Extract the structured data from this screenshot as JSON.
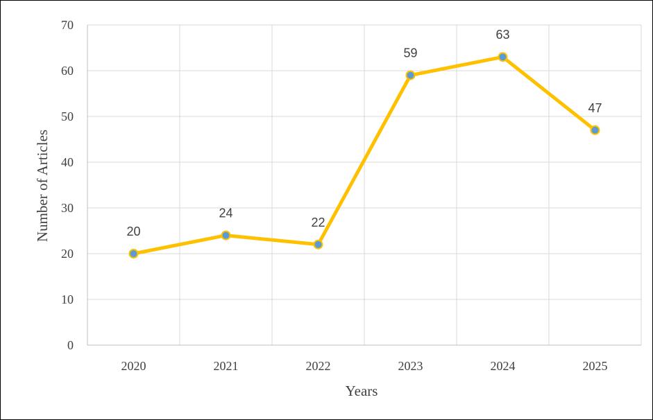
{
  "chart_data": {
    "type": "line",
    "title": "",
    "xlabel": "Years",
    "ylabel": "Number of Articles",
    "categories": [
      "2020",
      "2021",
      "2022",
      "2023",
      "2024",
      "2025"
    ],
    "series": [
      {
        "values": [
          20,
          24,
          22,
          59,
          63,
          47
        ]
      }
    ],
    "data_labels": [
      "20",
      "24",
      "22",
      "59",
      "63",
      "47"
    ],
    "y_ticks": [
      "0",
      "10",
      "20",
      "30",
      "40",
      "50",
      "60",
      "70"
    ],
    "ylim": [
      0,
      70
    ],
    "grid": true,
    "legend": "none",
    "colors": {
      "line": "#FFC000",
      "marker_fill": "#5B9BD5",
      "marker_edge": "#FFC000",
      "grid": "#D9D9D9",
      "axis": "#BFBFBF"
    }
  }
}
